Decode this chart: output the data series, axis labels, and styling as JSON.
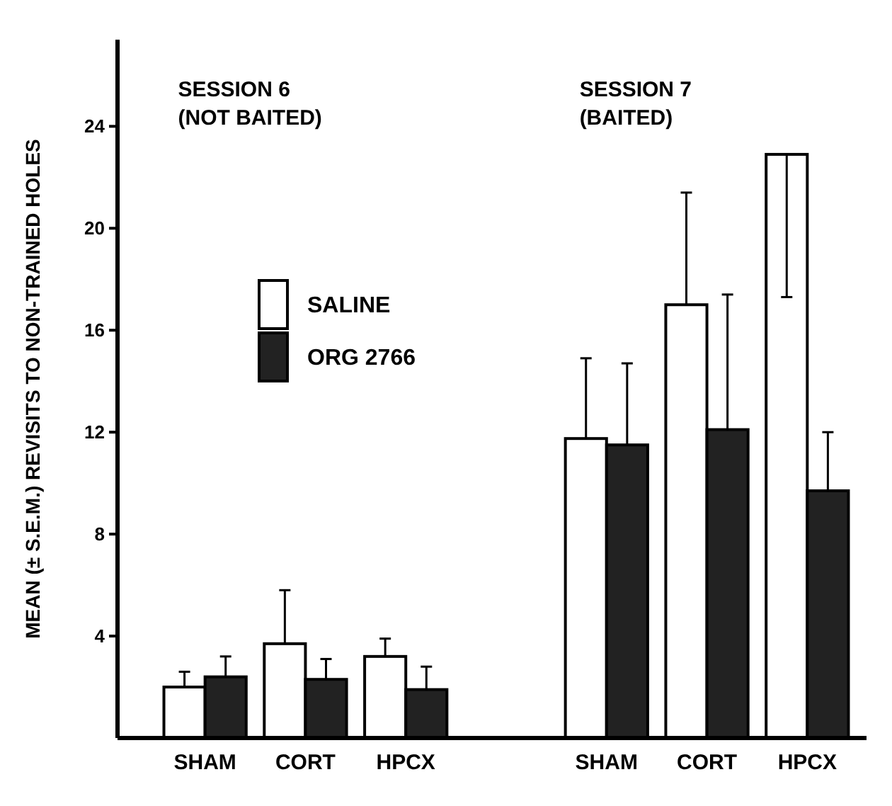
{
  "chart_data": {
    "type": "bar",
    "ylabel": "MEAN (± S.E.M.) REVISITS TO NON-TRAINED HOLES",
    "categories": [
      "SHAM",
      "CORT",
      "HPCX",
      null,
      "SHAM",
      "CORT",
      "HPCX"
    ],
    "series": [
      {
        "name": "SALINE",
        "color": "#ffffff",
        "values": [
          2.0,
          3.7,
          3.2,
          null,
          11.75,
          17.0,
          22.9
        ],
        "errors": [
          [
            2.0,
            2.6
          ],
          [
            3.7,
            5.8
          ],
          [
            3.2,
            3.9
          ],
          null,
          [
            11.75,
            14.9
          ],
          [
            17.0,
            21.4
          ],
          [
            17.3,
            22.9
          ]
        ]
      },
      {
        "name": "ORG 2766",
        "color": "#222222",
        "values": [
          2.4,
          2.3,
          1.9,
          null,
          11.5,
          12.1,
          9.7
        ],
        "errors": [
          [
            2.4,
            3.2
          ],
          [
            2.3,
            3.1
          ],
          [
            1.9,
            2.8
          ],
          null,
          [
            11.5,
            14.7
          ],
          [
            12.1,
            17.4
          ],
          [
            9.7,
            12.0
          ]
        ]
      }
    ],
    "ylim": [
      0,
      27.4
    ],
    "yticks": [
      4,
      8,
      12,
      16,
      20,
      24
    ],
    "grid": false,
    "legend": "left",
    "annotations": [
      "SESSION 6\n(NOT BAITED)",
      "SESSION 7\n(BAITED)"
    ]
  }
}
